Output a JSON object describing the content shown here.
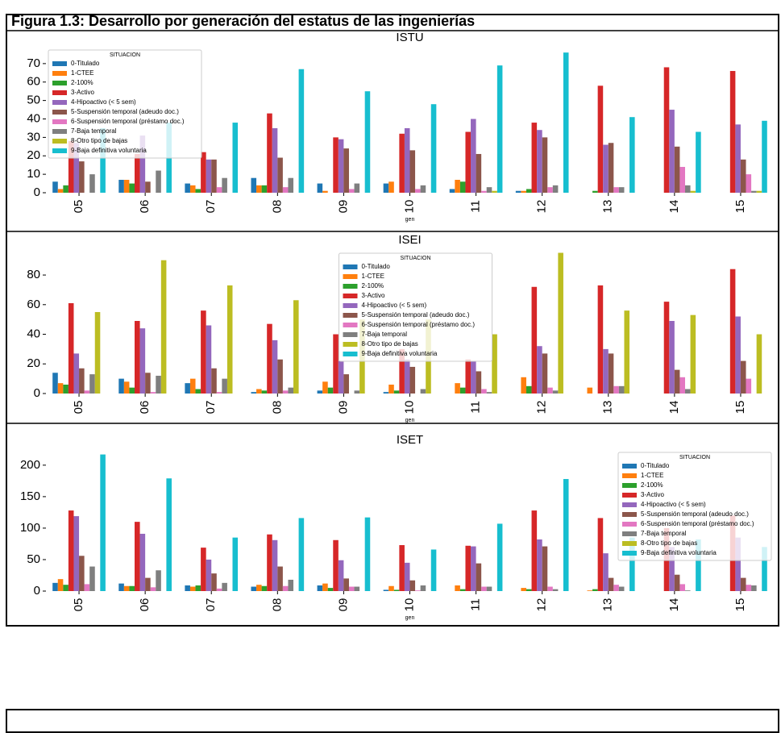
{
  "title": "Figura 1.3: Desarrollo por generación del estatus de las ingenierías",
  "chart_data": [
    {
      "type": "bar",
      "title": "ISTU",
      "xlabel": "gen",
      "legend_title": "SITUACION",
      "legend": "upper left",
      "categories": [
        "05",
        "06",
        "07",
        "08",
        "09",
        "10",
        "11",
        "12",
        "13",
        "14",
        "15"
      ],
      "ylim": [
        0,
        80
      ],
      "yticks": [
        0,
        10,
        20,
        30,
        40,
        50,
        60,
        70
      ],
      "series": [
        {
          "name": "0-Titulado",
          "color": "#1f77b4",
          "values": [
            6,
            7,
            5,
            8,
            5,
            5,
            2,
            1,
            0,
            0,
            0
          ]
        },
        {
          "name": "1-CTEE",
          "color": "#ff7f0e",
          "values": [
            2,
            7,
            4,
            4,
            1,
            6,
            7,
            1,
            0,
            0,
            0
          ]
        },
        {
          "name": "2-100%",
          "color": "#2ca02c",
          "values": [
            4,
            5,
            2,
            4,
            0,
            0,
            6,
            2,
            1,
            0,
            0
          ]
        },
        {
          "name": "3-Activo",
          "color": "#d62728",
          "values": [
            28,
            21,
            22,
            43,
            30,
            32,
            33,
            38,
            58,
            68,
            66
          ]
        },
        {
          "name": "4-Hipoactivo (< 5 sem)",
          "color": "#9467bd",
          "values": [
            27,
            31,
            18,
            35,
            29,
            35,
            40,
            34,
            26,
            45,
            37
          ]
        },
        {
          "name": "5-Suspensión temporal (adeudo doc.)",
          "color": "#8c564b",
          "values": [
            17,
            6,
            18,
            19,
            24,
            23,
            21,
            30,
            27,
            25,
            18
          ]
        },
        {
          "name": "6-Suspensión temporal (préstamo doc.)",
          "color": "#e377c2",
          "values": [
            0,
            0,
            3,
            3,
            2,
            2,
            1,
            3,
            3,
            14,
            10
          ]
        },
        {
          "name": "7-Baja temporal",
          "color": "#7f7f7f",
          "values": [
            10,
            12,
            8,
            8,
            5,
            4,
            3,
            4,
            3,
            4,
            1
          ]
        },
        {
          "name": "8-Otro tipo de bajas",
          "color": "#bcbd22",
          "values": [
            0,
            0,
            0,
            0,
            0,
            0,
            1,
            0,
            0,
            1,
            1
          ]
        },
        {
          "name": "9-Baja definitiva voluntaria",
          "color": "#17becf",
          "values": [
            35,
            38,
            38,
            67,
            55,
            48,
            69,
            76,
            41,
            33,
            39
          ]
        }
      ]
    },
    {
      "type": "bar",
      "title": "ISEI",
      "xlabel": "gen",
      "legend_title": "SITUACION",
      "legend": "upper center",
      "categories": [
        "05",
        "06",
        "07",
        "08",
        "09",
        "10",
        "11",
        "12",
        "13",
        "14",
        "15"
      ],
      "ylim": [
        0,
        98
      ],
      "yticks": [
        0,
        20,
        40,
        60,
        80
      ],
      "series": [
        {
          "name": "0-Titulado",
          "color": "#1f77b4",
          "values": [
            14,
            10,
            7,
            1,
            2,
            1,
            0,
            0,
            0,
            0,
            0
          ]
        },
        {
          "name": "1-CTEE",
          "color": "#ff7f0e",
          "values": [
            7,
            8,
            10,
            3,
            8,
            6,
            7,
            11,
            4,
            0,
            0
          ]
        },
        {
          "name": "2-100%",
          "color": "#2ca02c",
          "values": [
            6,
            4,
            3,
            2,
            4,
            2,
            4,
            5,
            0,
            0,
            0
          ]
        },
        {
          "name": "3-Activo",
          "color": "#d62728",
          "values": [
            61,
            49,
            56,
            47,
            40,
            30,
            23,
            72,
            73,
            62,
            84
          ]
        },
        {
          "name": "4-Hipoactivo (< 5 sem)",
          "color": "#9467bd",
          "values": [
            27,
            44,
            46,
            36,
            22,
            23,
            22,
            32,
            30,
            49,
            52
          ]
        },
        {
          "name": "5-Suspensión temporal (adeudo doc.)",
          "color": "#8c564b",
          "values": [
            17,
            14,
            17,
            23,
            13,
            18,
            15,
            27,
            27,
            16,
            22
          ]
        },
        {
          "name": "6-Suspensión temporal (préstamo doc.)",
          "color": "#e377c2",
          "values": [
            2,
            1,
            1,
            2,
            0,
            0,
            3,
            4,
            5,
            11,
            10
          ]
        },
        {
          "name": "7-Baja temporal",
          "color": "#7f7f7f",
          "values": [
            13,
            12,
            10,
            4,
            2,
            3,
            1,
            2,
            5,
            3,
            0
          ]
        },
        {
          "name": "8-Otro tipo de bajas",
          "color": "#bcbd22",
          "values": [
            55,
            90,
            73,
            63,
            50,
            50,
            40,
            95,
            56,
            53,
            40
          ]
        },
        {
          "name": "9-Baja definitiva voluntaria",
          "color": "#17becf",
          "values": [
            0,
            0,
            0,
            0,
            0,
            0,
            0,
            0,
            0,
            0,
            0
          ]
        }
      ]
    },
    {
      "type": "bar",
      "title": "ISET",
      "xlabel": "gen",
      "legend_title": "SITUACION",
      "legend": "upper right",
      "categories": [
        "05",
        "06",
        "07",
        "08",
        "09",
        "10",
        "11",
        "12",
        "13",
        "14",
        "15"
      ],
      "ylim": [
        0,
        228
      ],
      "yticks": [
        0,
        50,
        100,
        150,
        200
      ],
      "series": [
        {
          "name": "0-Titulado",
          "color": "#1f77b4",
          "values": [
            13,
            12,
            9,
            7,
            9,
            2,
            0,
            0,
            0,
            0,
            0
          ]
        },
        {
          "name": "1-CTEE",
          "color": "#ff7f0e",
          "values": [
            19,
            8,
            7,
            10,
            12,
            8,
            9,
            5,
            1,
            0,
            0
          ]
        },
        {
          "name": "2-100%",
          "color": "#2ca02c",
          "values": [
            10,
            8,
            9,
            8,
            5,
            2,
            3,
            3,
            3,
            0,
            0
          ]
        },
        {
          "name": "3-Activo",
          "color": "#d62728",
          "values": [
            128,
            110,
            69,
            90,
            81,
            73,
            72,
            128,
            116,
            100,
            120
          ]
        },
        {
          "name": "4-Hipoactivo (< 5 sem)",
          "color": "#9467bd",
          "values": [
            119,
            91,
            50,
            81,
            49,
            45,
            71,
            82,
            60,
            70,
            85
          ]
        },
        {
          "name": "5-Suspensión temporal (adeudo doc.)",
          "color": "#8c564b",
          "values": [
            56,
            21,
            28,
            39,
            20,
            17,
            44,
            71,
            21,
            26,
            21
          ]
        },
        {
          "name": "6-Suspensión temporal (préstamo doc.)",
          "color": "#e377c2",
          "values": [
            11,
            6,
            4,
            8,
            7,
            1,
            7,
            7,
            10,
            11,
            10
          ]
        },
        {
          "name": "7-Baja temporal",
          "color": "#7f7f7f",
          "values": [
            39,
            33,
            13,
            18,
            7,
            9,
            7,
            3,
            7,
            1,
            9
          ]
        },
        {
          "name": "8-Otro tipo de bajas",
          "color": "#bcbd22",
          "values": [
            0,
            0,
            0,
            0,
            0,
            0,
            0,
            0,
            0,
            0,
            0
          ]
        },
        {
          "name": "9-Baja definitiva voluntaria",
          "color": "#17becf",
          "values": [
            217,
            179,
            85,
            116,
            117,
            66,
            107,
            178,
            85,
            82,
            70
          ]
        }
      ]
    }
  ]
}
